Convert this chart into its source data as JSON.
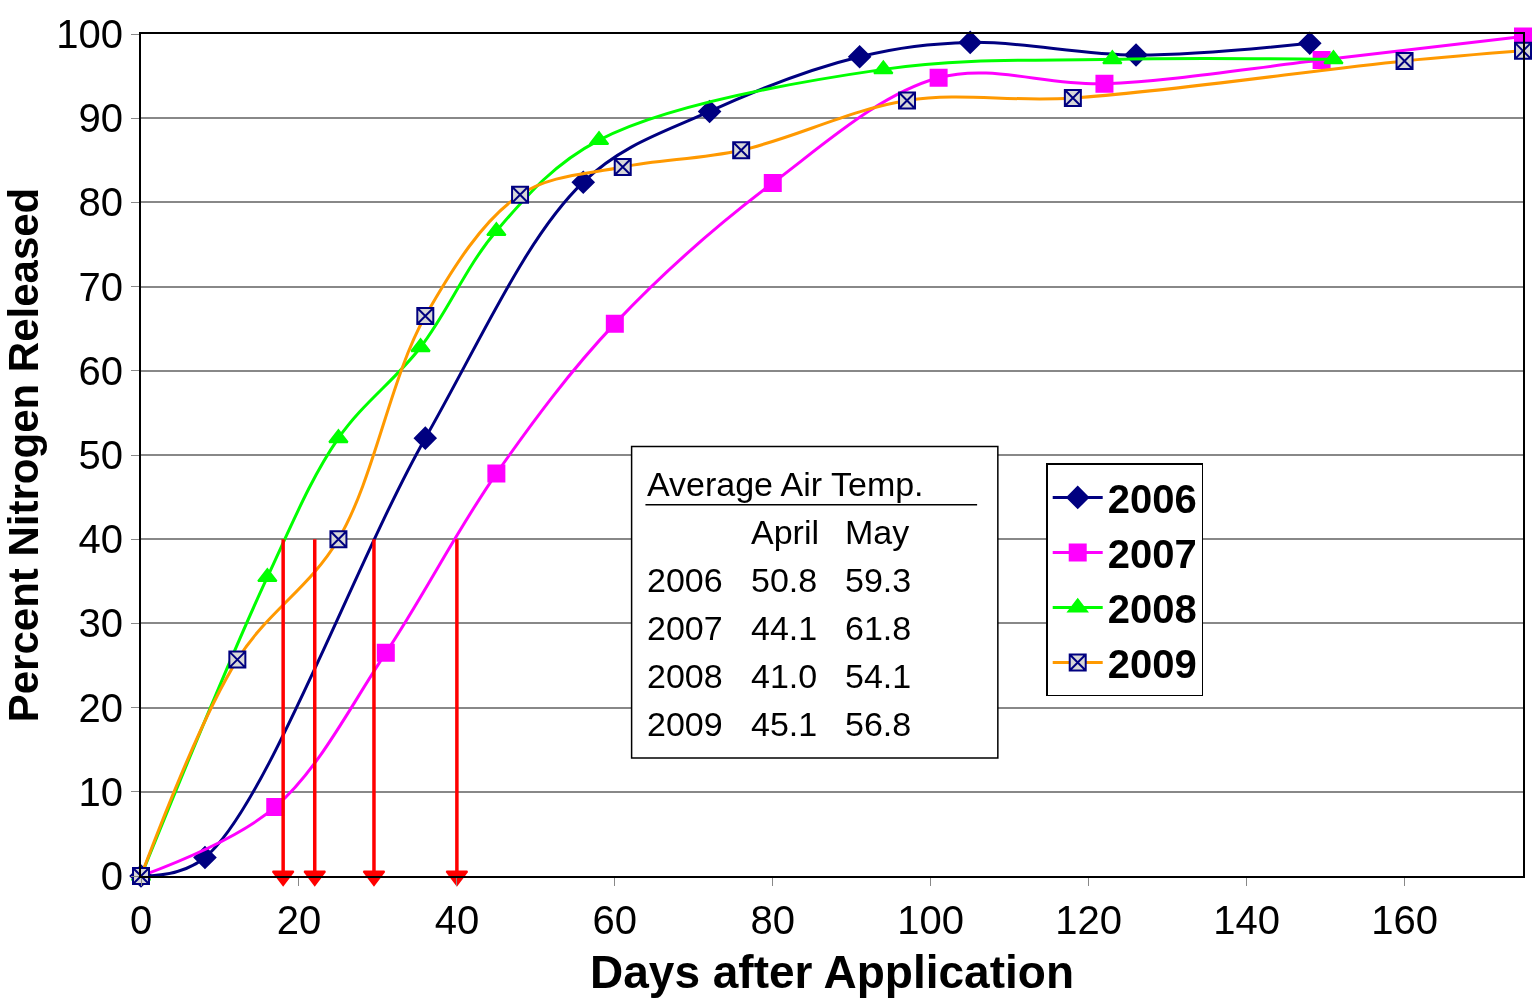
{
  "chart_data": {
    "type": "line",
    "xlabel": "Days after Application",
    "ylabel": "Percent Nitrogen Released",
    "xlim": [
      0,
      175
    ],
    "xticks": [
      0,
      20,
      40,
      60,
      80,
      100,
      120,
      140,
      160
    ],
    "ylim": [
      0,
      100
    ],
    "yticks": [
      0,
      10,
      20,
      30,
      40,
      50,
      60,
      70,
      80,
      90,
      100
    ],
    "grid": "y",
    "legend": "right",
    "line_style": "solid",
    "series": [
      {
        "name": "2006",
        "color": "#000080",
        "marker": "diamond",
        "x": [
          0,
          8.1,
          36,
          56,
          72,
          91,
          105,
          126,
          148
        ],
        "values": [
          0,
          2.2,
          52,
          82.4,
          90.8,
          97.3,
          99,
          97.5,
          98.9
        ]
      },
      {
        "name": "2007",
        "color": "#ff00ff",
        "marker": "square",
        "x": [
          0,
          17,
          31,
          45,
          60,
          80,
          101,
          122,
          149.5,
          175
        ],
        "values": [
          0,
          8.2,
          26.5,
          47.8,
          65.6,
          82.3,
          94.8,
          94.1,
          96.9,
          99.7
        ]
      },
      {
        "name": "2008",
        "color": "#00ff00",
        "marker": "triangle",
        "x": [
          0,
          16,
          25,
          35.4,
          45,
          58,
          94,
          123,
          151
        ],
        "values": [
          0,
          35.5,
          52,
          62.8,
          76.6,
          87.4,
          95.8,
          97,
          97
        ]
      },
      {
        "name": "2009",
        "color": "#ff9900",
        "marker": "cross",
        "x": [
          0,
          12.2,
          25,
          36,
          48,
          61,
          76,
          97,
          118,
          160,
          175
        ],
        "values": [
          0,
          25.7,
          40,
          66.5,
          80.9,
          84.2,
          86.2,
          92.1,
          92.4,
          96.8,
          98
        ]
      },
      {
        "color": "#ff0000",
        "marker": "triangle",
        "x": [
          18,
          18
        ],
        "values": [
          40,
          0
        ]
      },
      {
        "color": "#ff0000",
        "marker": "triangle",
        "x": [
          22,
          22
        ],
        "values": [
          40,
          0
        ]
      },
      {
        "color": "#ff0000",
        "marker": "triangle",
        "x": [
          29.5,
          29.5
        ],
        "values": [
          40,
          0
        ]
      },
      {
        "color": "#ff0000",
        "marker": "triangle",
        "x": [
          40,
          40
        ],
        "values": [
          40,
          0
        ]
      }
    ],
    "annotations": [
      "Average Air Temp.",
      "April May",
      "2006 50.8 59.3",
      "2007 44.1 61.8",
      "2008 41.0 54.1",
      "2009 45.1 56.8"
    ]
  }
}
